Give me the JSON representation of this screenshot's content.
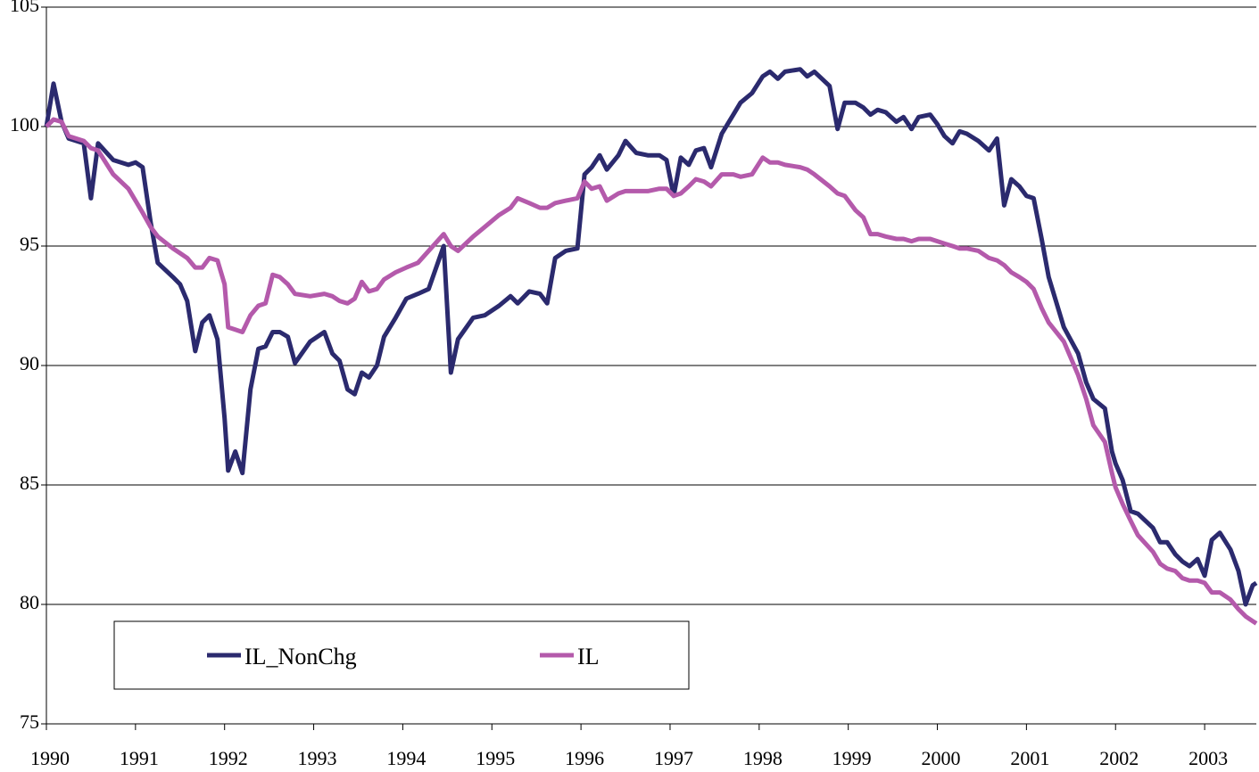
{
  "chart_data": {
    "type": "line",
    "x": [
      1990,
      1990.08,
      1990.17,
      1990.25,
      1990.42,
      1990.5,
      1990.58,
      1990.75,
      1990.92,
      1991,
      1991.08,
      1991.17,
      1991.25,
      1991.42,
      1991.5,
      1991.58,
      1991.67,
      1991.75,
      1991.83,
      1991.92,
      1992,
      1992.04,
      1992.12,
      1992.2,
      1992.29,
      1992.38,
      1992.46,
      1992.54,
      1992.62,
      1992.71,
      1992.79,
      1992.96,
      1993.12,
      1993.21,
      1993.29,
      1993.38,
      1993.46,
      1993.54,
      1993.62,
      1993.71,
      1993.79,
      1993.92,
      1994.04,
      1994.17,
      1994.29,
      1994.46,
      1994.54,
      1994.62,
      1994.79,
      1994.92,
      1995.08,
      1995.21,
      1995.29,
      1995.42,
      1995.54,
      1995.62,
      1995.71,
      1995.83,
      1995.96,
      1996.04,
      1996.12,
      1996.21,
      1996.29,
      1996.42,
      1996.5,
      1996.62,
      1996.75,
      1996.88,
      1996.96,
      1997.04,
      1997.12,
      1997.21,
      1997.29,
      1997.38,
      1997.46,
      1997.58,
      1997.71,
      1997.79,
      1997.92,
      1998.04,
      1998.12,
      1998.21,
      1998.29,
      1998.46,
      1998.54,
      1998.62,
      1998.79,
      1998.88,
      1998.96,
      1999.08,
      1999.17,
      1999.25,
      1999.33,
      1999.42,
      1999.54,
      1999.62,
      1999.71,
      1999.79,
      1999.92,
      2000,
      2000.08,
      2000.17,
      2000.25,
      2000.33,
      2000.46,
      2000.58,
      2000.67,
      2000.75,
      2000.83,
      2000.92,
      2001,
      2001.08,
      2001.17,
      2001.25,
      2001.42,
      2001.58,
      2001.67,
      2001.75,
      2001.88,
      2001.96,
      2002,
      2002.08,
      2002.17,
      2002.25,
      2002.42,
      2002.5,
      2002.58,
      2002.67,
      2002.75,
      2002.83,
      2002.92,
      2003,
      2003.08,
      2003.17,
      2003.29,
      2003.38,
      2003.46,
      2003.54,
      2003.58
    ],
    "series": [
      {
        "name": "IL_NonChg",
        "color": "#2b2a6e",
        "values": [
          100,
          101.8,
          100.2,
          99.5,
          99.3,
          97.0,
          99.3,
          98.6,
          98.4,
          98.5,
          98.3,
          96.0,
          94.3,
          93.7,
          93.4,
          92.7,
          90.6,
          91.8,
          92.1,
          91.1,
          87.8,
          85.6,
          86.4,
          85.5,
          89.0,
          90.7,
          90.8,
          91.4,
          91.4,
          91.2,
          90.1,
          91.0,
          91.4,
          90.5,
          90.2,
          89.0,
          88.8,
          89.7,
          89.5,
          90.0,
          91.2,
          92.0,
          92.8,
          93.0,
          93.2,
          95.0,
          89.7,
          91.1,
          92.0,
          92.1,
          92.5,
          92.9,
          92.6,
          93.1,
          93.0,
          92.6,
          94.5,
          94.8,
          94.9,
          98.0,
          98.3,
          98.8,
          98.2,
          98.8,
          99.4,
          98.9,
          98.8,
          98.8,
          98.6,
          97.1,
          98.7,
          98.4,
          99.0,
          99.1,
          98.3,
          99.7,
          100.5,
          101.0,
          101.4,
          102.1,
          102.3,
          102.0,
          102.3,
          102.4,
          102.1,
          102.3,
          101.7,
          99.9,
          101.0,
          101.0,
          100.8,
          100.5,
          100.7,
          100.6,
          100.2,
          100.4,
          99.9,
          100.4,
          100.5,
          100.1,
          99.6,
          99.3,
          99.8,
          99.7,
          99.4,
          99.0,
          99.5,
          96.7,
          97.8,
          97.5,
          97.1,
          97.0,
          95.3,
          93.7,
          91.6,
          90.5,
          89.3,
          88.6,
          88.2,
          86.4,
          85.9,
          85.2,
          83.9,
          83.8,
          83.2,
          82.6,
          82.6,
          82.1,
          81.8,
          81.6,
          81.9,
          81.2,
          82.7,
          83.0,
          82.3,
          81.4,
          80.0,
          80.8,
          80.9
        ]
      },
      {
        "name": "IL",
        "color": "#b45aab",
        "values": [
          100,
          100.3,
          100.2,
          99.6,
          99.4,
          99.1,
          99.0,
          98.0,
          97.4,
          96.9,
          96.4,
          95.8,
          95.4,
          94.9,
          94.7,
          94.5,
          94.1,
          94.1,
          94.5,
          94.4,
          93.4,
          91.6,
          91.5,
          91.4,
          92.1,
          92.5,
          92.6,
          93.8,
          93.7,
          93.4,
          93.0,
          92.9,
          93.0,
          92.9,
          92.7,
          92.6,
          92.8,
          93.5,
          93.1,
          93.2,
          93.6,
          93.9,
          94.1,
          94.3,
          94.8,
          95.5,
          95.0,
          94.8,
          95.4,
          95.8,
          96.3,
          96.6,
          97.0,
          96.8,
          96.6,
          96.6,
          96.8,
          96.9,
          97.0,
          97.7,
          97.4,
          97.5,
          96.9,
          97.2,
          97.3,
          97.3,
          97.3,
          97.4,
          97.4,
          97.1,
          97.2,
          97.5,
          97.8,
          97.7,
          97.5,
          98.0,
          98.0,
          97.9,
          98.0,
          98.7,
          98.5,
          98.5,
          98.4,
          98.3,
          98.2,
          98.0,
          97.5,
          97.2,
          97.1,
          96.5,
          96.2,
          95.5,
          95.5,
          95.4,
          95.3,
          95.3,
          95.2,
          95.3,
          95.3,
          95.2,
          95.1,
          95.0,
          94.9,
          94.9,
          94.8,
          94.5,
          94.4,
          94.2,
          93.9,
          93.7,
          93.5,
          93.2,
          92.4,
          91.8,
          91.0,
          89.6,
          88.6,
          87.5,
          86.8,
          85.5,
          84.9,
          84.2,
          83.5,
          82.9,
          82.2,
          81.7,
          81.5,
          81.4,
          81.1,
          81.0,
          81.0,
          80.9,
          80.5,
          80.5,
          80.2,
          79.8,
          79.5,
          79.3,
          79.2
        ]
      }
    ],
    "xlim": [
      1990,
      2003.58
    ],
    "xticks": [
      1990,
      1991,
      1992,
      1993,
      1994,
      1995,
      1996,
      1997,
      1998,
      1999,
      2000,
      2001,
      2002,
      2003
    ],
    "ylim": [
      75,
      105
    ],
    "yticks": [
      75,
      80,
      85,
      90,
      95,
      100,
      105
    ],
    "grid": true
  }
}
